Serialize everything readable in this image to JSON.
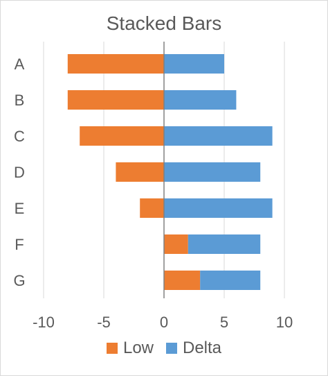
{
  "chart_data": {
    "type": "bar",
    "orientation": "horizontal",
    "stacked": true,
    "title": "Stacked Bars",
    "categories": [
      "A",
      "B",
      "C",
      "D",
      "E",
      "F",
      "G"
    ],
    "series": [
      {
        "name": "Low",
        "values": [
          -8,
          -8,
          -7,
          -4,
          -2,
          2,
          3
        ],
        "color": "#ED7D31"
      },
      {
        "name": "Delta",
        "values": [
          5,
          6,
          9,
          8,
          9,
          6,
          5
        ],
        "color": "#5B9BD5"
      }
    ],
    "xlim": [
      -10,
      10
    ],
    "x_ticks": [
      "-10",
      "-5",
      "0",
      "5",
      "10"
    ],
    "grid": true,
    "legend_position": "bottom"
  }
}
